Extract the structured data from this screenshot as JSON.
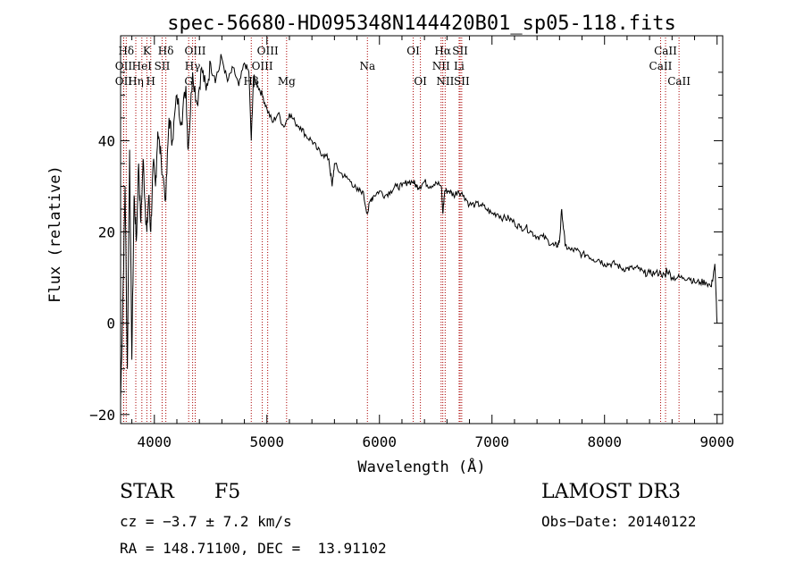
{
  "chart_data": {
    "type": "line",
    "title": "spec-56680-HD095348N144420B01_sp05-118.fits",
    "xlabel": "Wavelength (Å)",
    "ylabel": "Flux (relative)",
    "xlim": [
      3700,
      9050
    ],
    "ylim": [
      -22,
      63
    ],
    "xticks": [
      4000,
      5000,
      6000,
      7000,
      8000,
      9000
    ],
    "xtick_labels": [
      "4000",
      "5000",
      "6000",
      "7000",
      "8000",
      "9000"
    ],
    "yticks": [
      -20,
      0,
      20,
      40
    ],
    "ytick_labels": [
      "−20",
      "0",
      "20",
      "40"
    ],
    "spectrum": {
      "x": [
        3700,
        3720,
        3740,
        3760,
        3780,
        3800,
        3820,
        3840,
        3860,
        3880,
        3900,
        3920,
        3933,
        3950,
        3968,
        3990,
        4010,
        4030,
        4060,
        4102,
        4130,
        4160,
        4200,
        4240,
        4280,
        4300,
        4340,
        4380,
        4420,
        4460,
        4500,
        4550,
        4600,
        4650,
        4700,
        4750,
        4800,
        4840,
        4861,
        4880,
        4920,
        4960,
        5000,
        5050,
        5100,
        5150,
        5200,
        5250,
        5300,
        5350,
        5400,
        5450,
        5500,
        5550,
        5580,
        5600,
        5650,
        5700,
        5750,
        5800,
        5850,
        5893,
        5920,
        5950,
        6000,
        6050,
        6100,
        6150,
        6200,
        6250,
        6300,
        6330,
        6360,
        6400,
        6450,
        6500,
        6550,
        6563,
        6580,
        6620,
        6660,
        6700,
        6750,
        6800,
        6850,
        6900,
        6950,
        7000,
        7050,
        7100,
        7150,
        7200,
        7250,
        7300,
        7350,
        7400,
        7450,
        7500,
        7550,
        7580,
        7600,
        7620,
        7650,
        7700,
        7750,
        7800,
        7850,
        7900,
        7950,
        8000,
        8050,
        8100,
        8150,
        8200,
        8250,
        8300,
        8350,
        8400,
        8450,
        8500,
        8542,
        8550,
        8600,
        8650,
        8700,
        8750,
        8800,
        8850,
        8900,
        8950,
        8980,
        9000
      ],
      "y": [
        -17,
        5,
        30,
        -10,
        38,
        -8,
        28,
        18,
        35,
        22,
        36,
        25,
        20,
        28,
        20,
        35,
        30,
        42,
        36,
        27,
        45,
        40,
        50,
        44,
        52,
        38,
        55,
        48,
        56,
        51,
        57,
        54,
        58,
        53,
        56,
        52,
        57,
        55,
        40,
        54,
        52,
        50,
        47,
        44,
        46,
        43,
        46,
        44,
        43,
        41,
        40,
        38,
        37,
        36,
        30,
        35,
        33,
        32,
        31,
        29,
        29,
        24,
        27,
        28,
        29,
        28,
        29,
        30,
        30,
        31,
        31,
        30,
        30,
        31,
        30,
        31,
        30,
        24,
        29,
        29,
        28,
        29,
        28,
        26,
        26,
        26,
        25,
        24,
        24,
        23,
        23,
        22,
        21,
        21,
        20,
        19,
        19,
        18,
        17,
        17,
        18,
        25,
        17,
        16,
        16,
        15,
        15,
        14,
        14,
        13,
        13,
        13,
        12,
        12,
        12,
        12,
        11,
        11,
        11,
        11,
        10,
        12,
        10,
        10,
        10,
        10,
        9,
        9,
        9,
        8,
        13,
        0
      ]
    },
    "lines": [
      {
        "label": "Hδ",
        "x": 3750,
        "row": 0
      },
      {
        "label": "OII",
        "x": 3727,
        "row": 1
      },
      {
        "label": "OII",
        "x": 3727,
        "row": 2
      },
      {
        "label": "K",
        "x": 3933,
        "row": 0
      },
      {
        "label": "H",
        "x": 3968,
        "row": 2
      },
      {
        "label": "HeI",
        "x": 3889,
        "row": 1
      },
      {
        "label": "Hη",
        "x": 3835,
        "row": 2
      },
      {
        "label": "Hδ",
        "x": 4102,
        "row": 0
      },
      {
        "label": "SII",
        "x": 4069,
        "row": 1
      },
      {
        "label": "OIII",
        "x": 4363,
        "row": 0
      },
      {
        "label": "Hγ",
        "x": 4340,
        "row": 1
      },
      {
        "label": "G",
        "x": 4305,
        "row": 2
      },
      {
        "label": "OIII",
        "x": 5007,
        "row": 0
      },
      {
        "label": "OIII",
        "x": 4959,
        "row": 1
      },
      {
        "label": "Hβ",
        "x": 4861,
        "row": 2
      },
      {
        "label": "Mg",
        "x": 5175,
        "row": 2
      },
      {
        "label": "Na",
        "x": 5893,
        "row": 1
      },
      {
        "label": "OI",
        "x": 6300,
        "row": 0
      },
      {
        "label": "OI",
        "x": 6364,
        "row": 2
      },
      {
        "label": "Hα",
        "x": 6563,
        "row": 0
      },
      {
        "label": "SII",
        "x": 6717,
        "row": 0
      },
      {
        "label": "NII",
        "x": 6548,
        "row": 1
      },
      {
        "label": "Li",
        "x": 6708,
        "row": 1
      },
      {
        "label": "NII",
        "x": 6584,
        "row": 2
      },
      {
        "label": "SII",
        "x": 6731,
        "row": 2
      },
      {
        "label": "CaII",
        "x": 8542,
        "row": 0
      },
      {
        "label": "CaII",
        "x": 8498,
        "row": 1
      },
      {
        "label": "CaII",
        "x": 8662,
        "row": 2
      }
    ]
  },
  "info": {
    "class_label": "STAR",
    "subclass": "F5",
    "cz": "cz = −3.7 ± 7.2 km/s",
    "coords": "RA = 148.71100, DEC =  13.91102",
    "survey": "LAMOST DR3",
    "obs_date": "Obs−Date: 20140122"
  },
  "colors": {
    "line_marker": "#aa0000",
    "spectrum": "#000000"
  }
}
